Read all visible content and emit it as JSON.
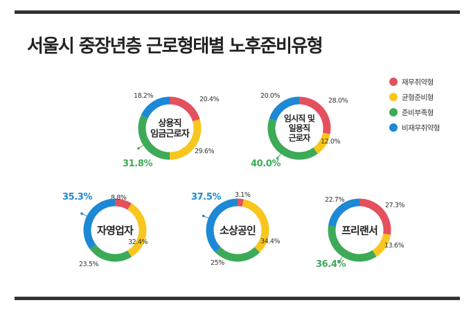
{
  "title": "서울시 중장년층 근로형태별 노후준비유형",
  "colors": {
    "재무취약형": "#e4505e",
    "균형준비형": "#f8c61e",
    "준비부족형": "#3daa57",
    "비재무취약형": "#1c88d6"
  },
  "legend": [
    {
      "label": "재무취약형",
      "color": "#e4505e"
    },
    {
      "label": "균형준비형",
      "color": "#f8c61e"
    },
    {
      "label": "준비부족형",
      "color": "#3daa57"
    },
    {
      "label": "비재무취약형",
      "color": "#1c88d6"
    }
  ],
  "chart_data": [
    {
      "type": "pie",
      "center_label": [
        "상용직",
        "임금근로자"
      ],
      "labels": [
        "재무취약형",
        "균형준비형",
        "준비부족형",
        "비재무취약형"
      ],
      "values": [
        20.4,
        29.6,
        31.8,
        18.2
      ],
      "value_labels": [
        "20.4%",
        "29.6%",
        "31.8%",
        "18.2%"
      ],
      "highlight": "준비부족형"
    },
    {
      "type": "pie",
      "center_label": [
        "임시직 및",
        "일용직",
        "근로자"
      ],
      "labels": [
        "재무취약형",
        "균형준비형",
        "준비부족형",
        "비재무취약형"
      ],
      "values": [
        28.0,
        12.0,
        40.0,
        20.0
      ],
      "value_labels": [
        "28.0%",
        "12.0%",
        "40.0%",
        "20.0%"
      ],
      "highlight": "준비부족형"
    },
    {
      "type": "pie",
      "center_label": [
        "자영업자"
      ],
      "labels": [
        "재무취약형",
        "균형준비형",
        "준비부족형",
        "비재무취약형"
      ],
      "values": [
        8.8,
        32.4,
        23.5,
        35.3
      ],
      "value_labels": [
        "8.8%",
        "32.4%",
        "23.5%",
        "35.3%"
      ],
      "highlight": "비재무취약형"
    },
    {
      "type": "pie",
      "center_label": [
        "소상공인"
      ],
      "labels": [
        "재무취약형",
        "균형준비형",
        "준비부족형",
        "비재무취약형"
      ],
      "values": [
        3.1,
        34.4,
        25.0,
        37.5
      ],
      "value_labels": [
        "3.1%",
        "34.4%",
        "25%",
        "37.5%"
      ],
      "highlight": "비재무취약형"
    },
    {
      "type": "pie",
      "center_label": [
        "프리랜서"
      ],
      "labels": [
        "재무취약형",
        "균형준비형",
        "준비부족형",
        "비재무취약형"
      ],
      "values": [
        27.3,
        13.6,
        36.4,
        22.7
      ],
      "value_labels": [
        "27.3%",
        "13.6%",
        "36.4%",
        "22.7%"
      ],
      "highlight": "준비부족형"
    }
  ]
}
